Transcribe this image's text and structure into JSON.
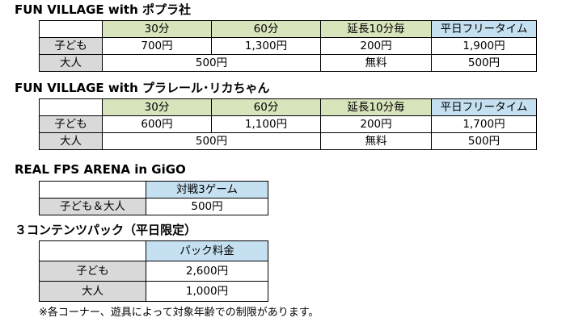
{
  "section1": {
    "title": "FUN VILLAGE with ポプラ社",
    "headers": [
      "30分",
      "60分",
      "延長10分毎",
      "平日フリータイム"
    ],
    "rows": [
      {
        "label": "子ども",
        "c30": "700円",
        "c60": "1,300円",
        "ext": "200円",
        "free": "1,900円"
      },
      {
        "label": "大人",
        "base": "500円",
        "ext": "無料",
        "free": "500円"
      }
    ]
  },
  "section2": {
    "title": "FUN VILLAGE with プラレール･リカちゃん",
    "headers": [
      "30分",
      "60分",
      "延長10分毎",
      "平日フリータイム"
    ],
    "rows": [
      {
        "label": "子ども",
        "c30": "600円",
        "c60": "1,100円",
        "ext": "200円",
        "free": "1,700円"
      },
      {
        "label": "大人",
        "base": "500円",
        "ext": "無料",
        "free": "500円"
      }
    ]
  },
  "section3": {
    "title": "REAL FPS ARENA in GiGO",
    "header": "対戦3ゲーム",
    "row": {
      "label": "子ども＆大人",
      "value": "500円"
    }
  },
  "section4": {
    "title": "３コンテンツパック（平日限定）",
    "header": "パック料金",
    "rows": [
      {
        "label": "子ども",
        "value": "2,600円"
      },
      {
        "label": "大人",
        "value": "1,000円"
      }
    ]
  },
  "note": "※各コーナー、遊具によって対象年齢での制限があります。",
  "colors": {
    "header_green": "#d8e4bc",
    "header_blue": "#c5e0f0",
    "label_gray": "#d9d9d9"
  }
}
